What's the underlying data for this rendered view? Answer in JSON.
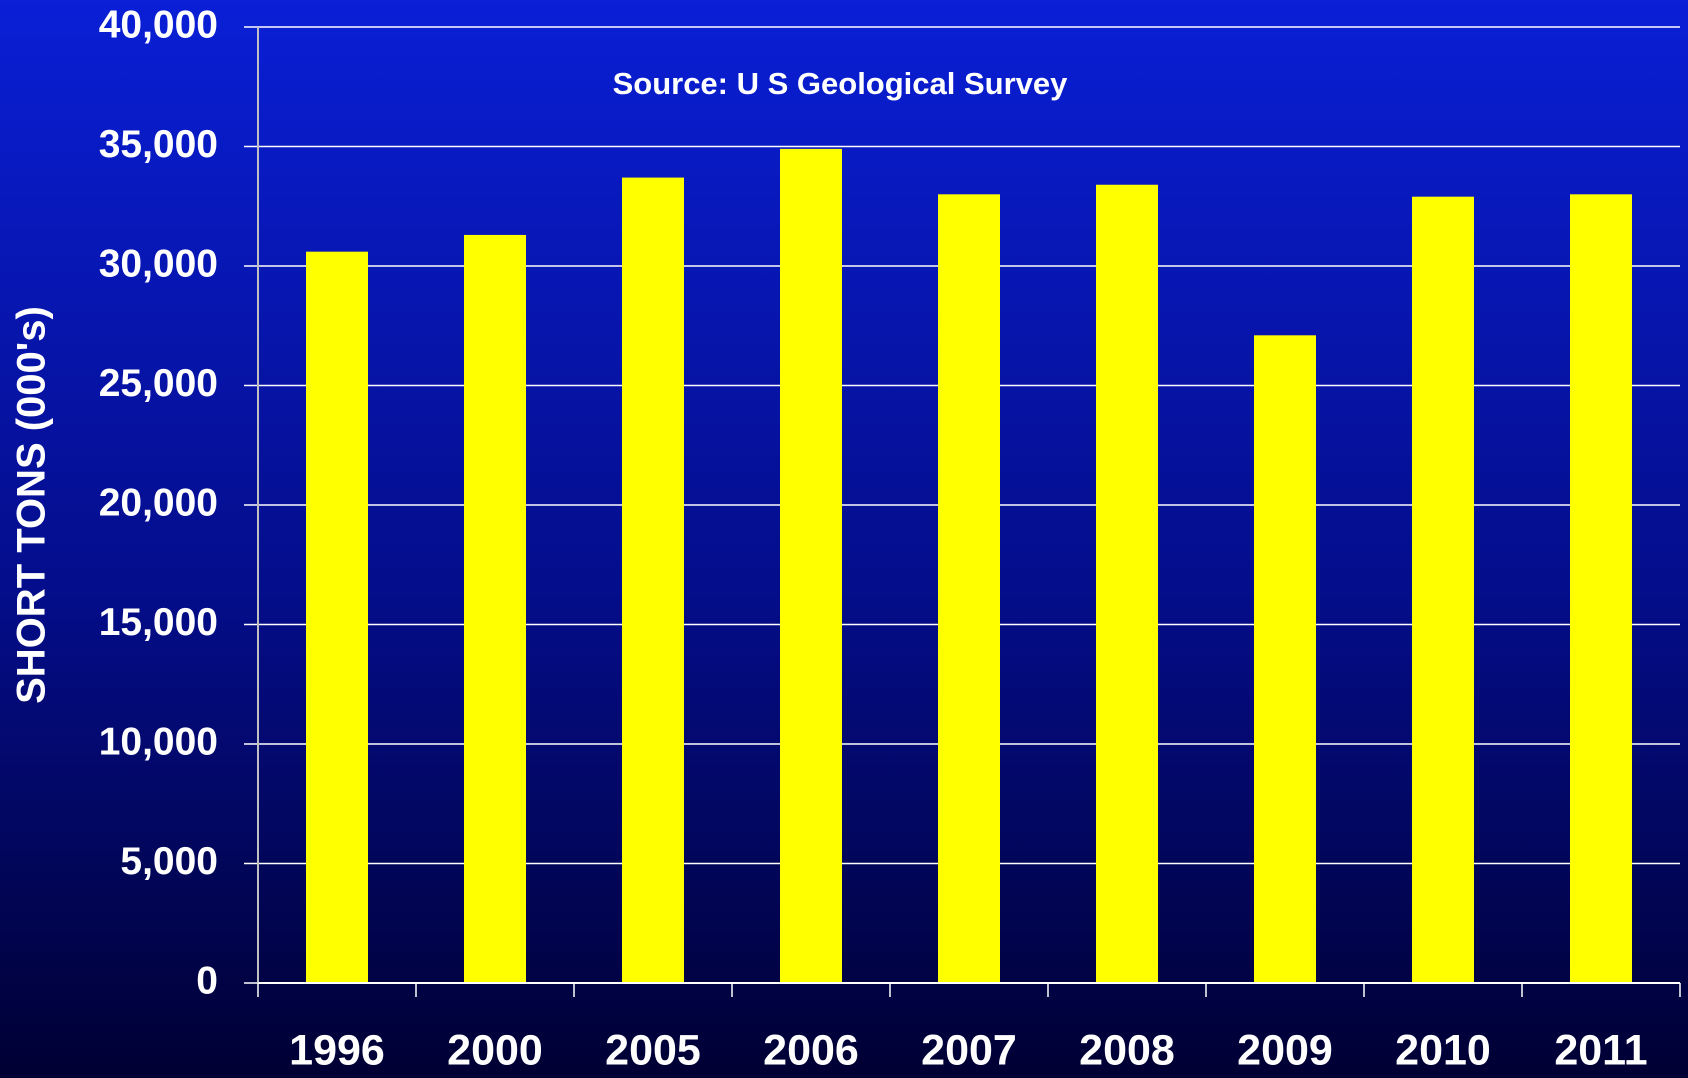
{
  "chart_data": {
    "type": "bar",
    "annotation": "Source: U S Geological Survey",
    "y_label": "SHORT TONS (000's)",
    "categories": [
      "1996",
      "2000",
      "2005",
      "2006",
      "2007",
      "2008",
      "2009",
      "2010",
      "2011"
    ],
    "values": [
      30600,
      31300,
      33700,
      34900,
      33000,
      33400,
      27100,
      32900,
      33000
    ],
    "color": "#ffff00",
    "ylim": [
      0,
      40000
    ],
    "yticks": [
      0,
      {
        "value": 5000,
        "label": "5,000"
      },
      {
        "value": 10000,
        "label": "10,000"
      },
      {
        "value": 15000,
        "label": "15,000"
      },
      {
        "value": 20000,
        "label": "20,000"
      },
      {
        "value": 25000,
        "label": "25,000"
      },
      {
        "value": 30000,
        "label": "30,000"
      },
      {
        "value": 35000,
        "label": "35,000"
      },
      {
        "value": 40000,
        "label": "40,000"
      }
    ],
    "grid": true
  }
}
